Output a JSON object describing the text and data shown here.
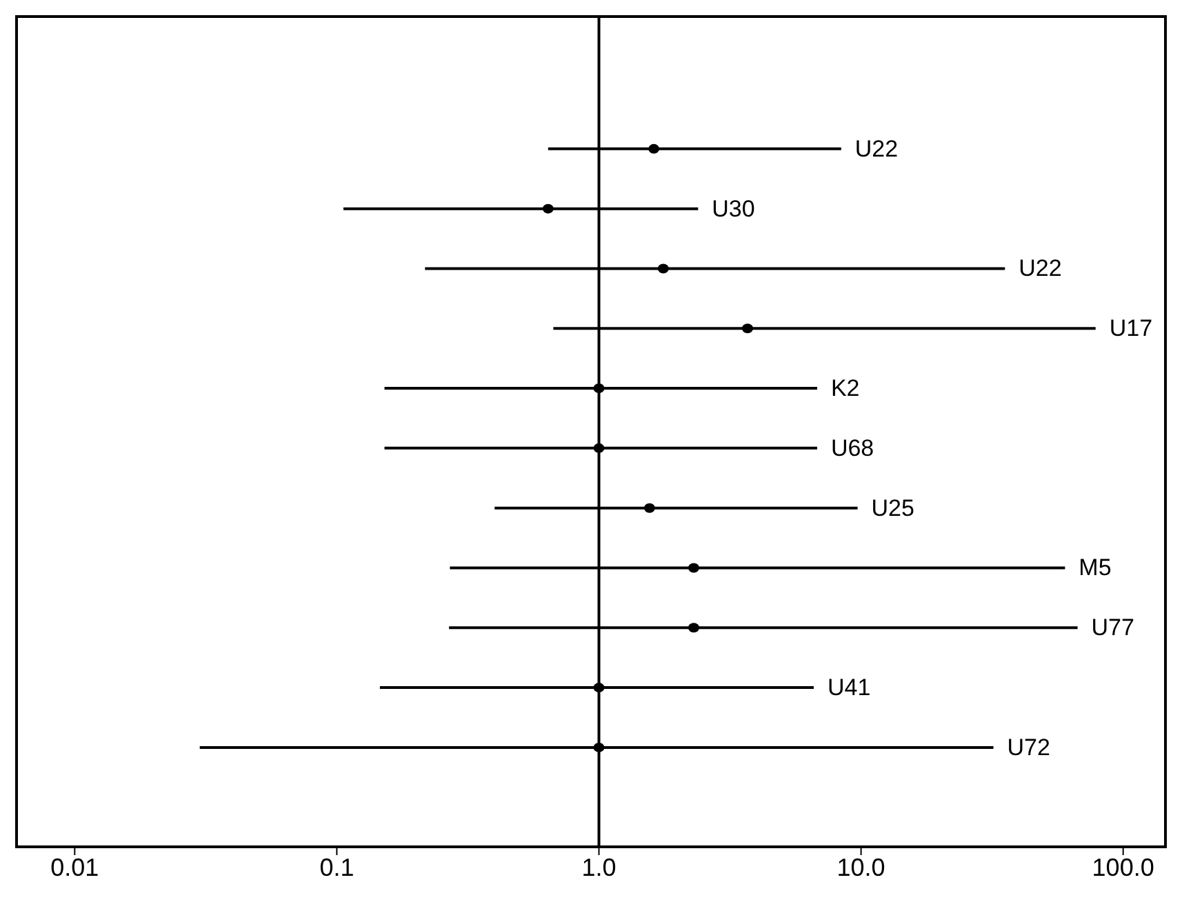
{
  "chart_data": {
    "type": "scatter",
    "orientation": "horizontal",
    "log": "x",
    "categories": [
      "U22",
      "U30",
      "U22",
      "U17",
      "K2",
      "U68",
      "U25",
      "M5",
      "U77",
      "U41",
      "U72"
    ],
    "values": [
      1.62,
      0.64,
      1.76,
      3.69,
      1.0,
      1.0,
      1.56,
      2.3,
      2.3,
      1.0,
      1.0
    ],
    "errors": [
      [
        0.64,
        8.4
      ],
      [
        0.106,
        2.39
      ],
      [
        0.217,
        35.4
      ],
      [
        0.67,
        78.5
      ],
      [
        0.152,
        6.8
      ],
      [
        0.152,
        6.8
      ],
      [
        0.4,
        9.7
      ],
      [
        0.27,
        60
      ],
      [
        0.268,
        67
      ],
      [
        0.146,
        6.6
      ],
      [
        0.03,
        32
      ]
    ],
    "color": "#000000",
    "marker": "circle",
    "xlim": [
      0.006,
      145
    ],
    "xticks": [
      {
        "value": 0.01,
        "label": "0.01"
      },
      {
        "value": 0.1,
        "label": "0.1"
      },
      {
        "value": 1,
        "label": "1.0"
      },
      {
        "value": 10,
        "label": "10.0"
      },
      {
        "value": 100,
        "label": "100.0"
      }
    ],
    "ref_lines": [
      {
        "axis": "x",
        "value": 1,
        "color": "#000000"
      }
    ],
    "legend": false,
    "grid": false
  }
}
